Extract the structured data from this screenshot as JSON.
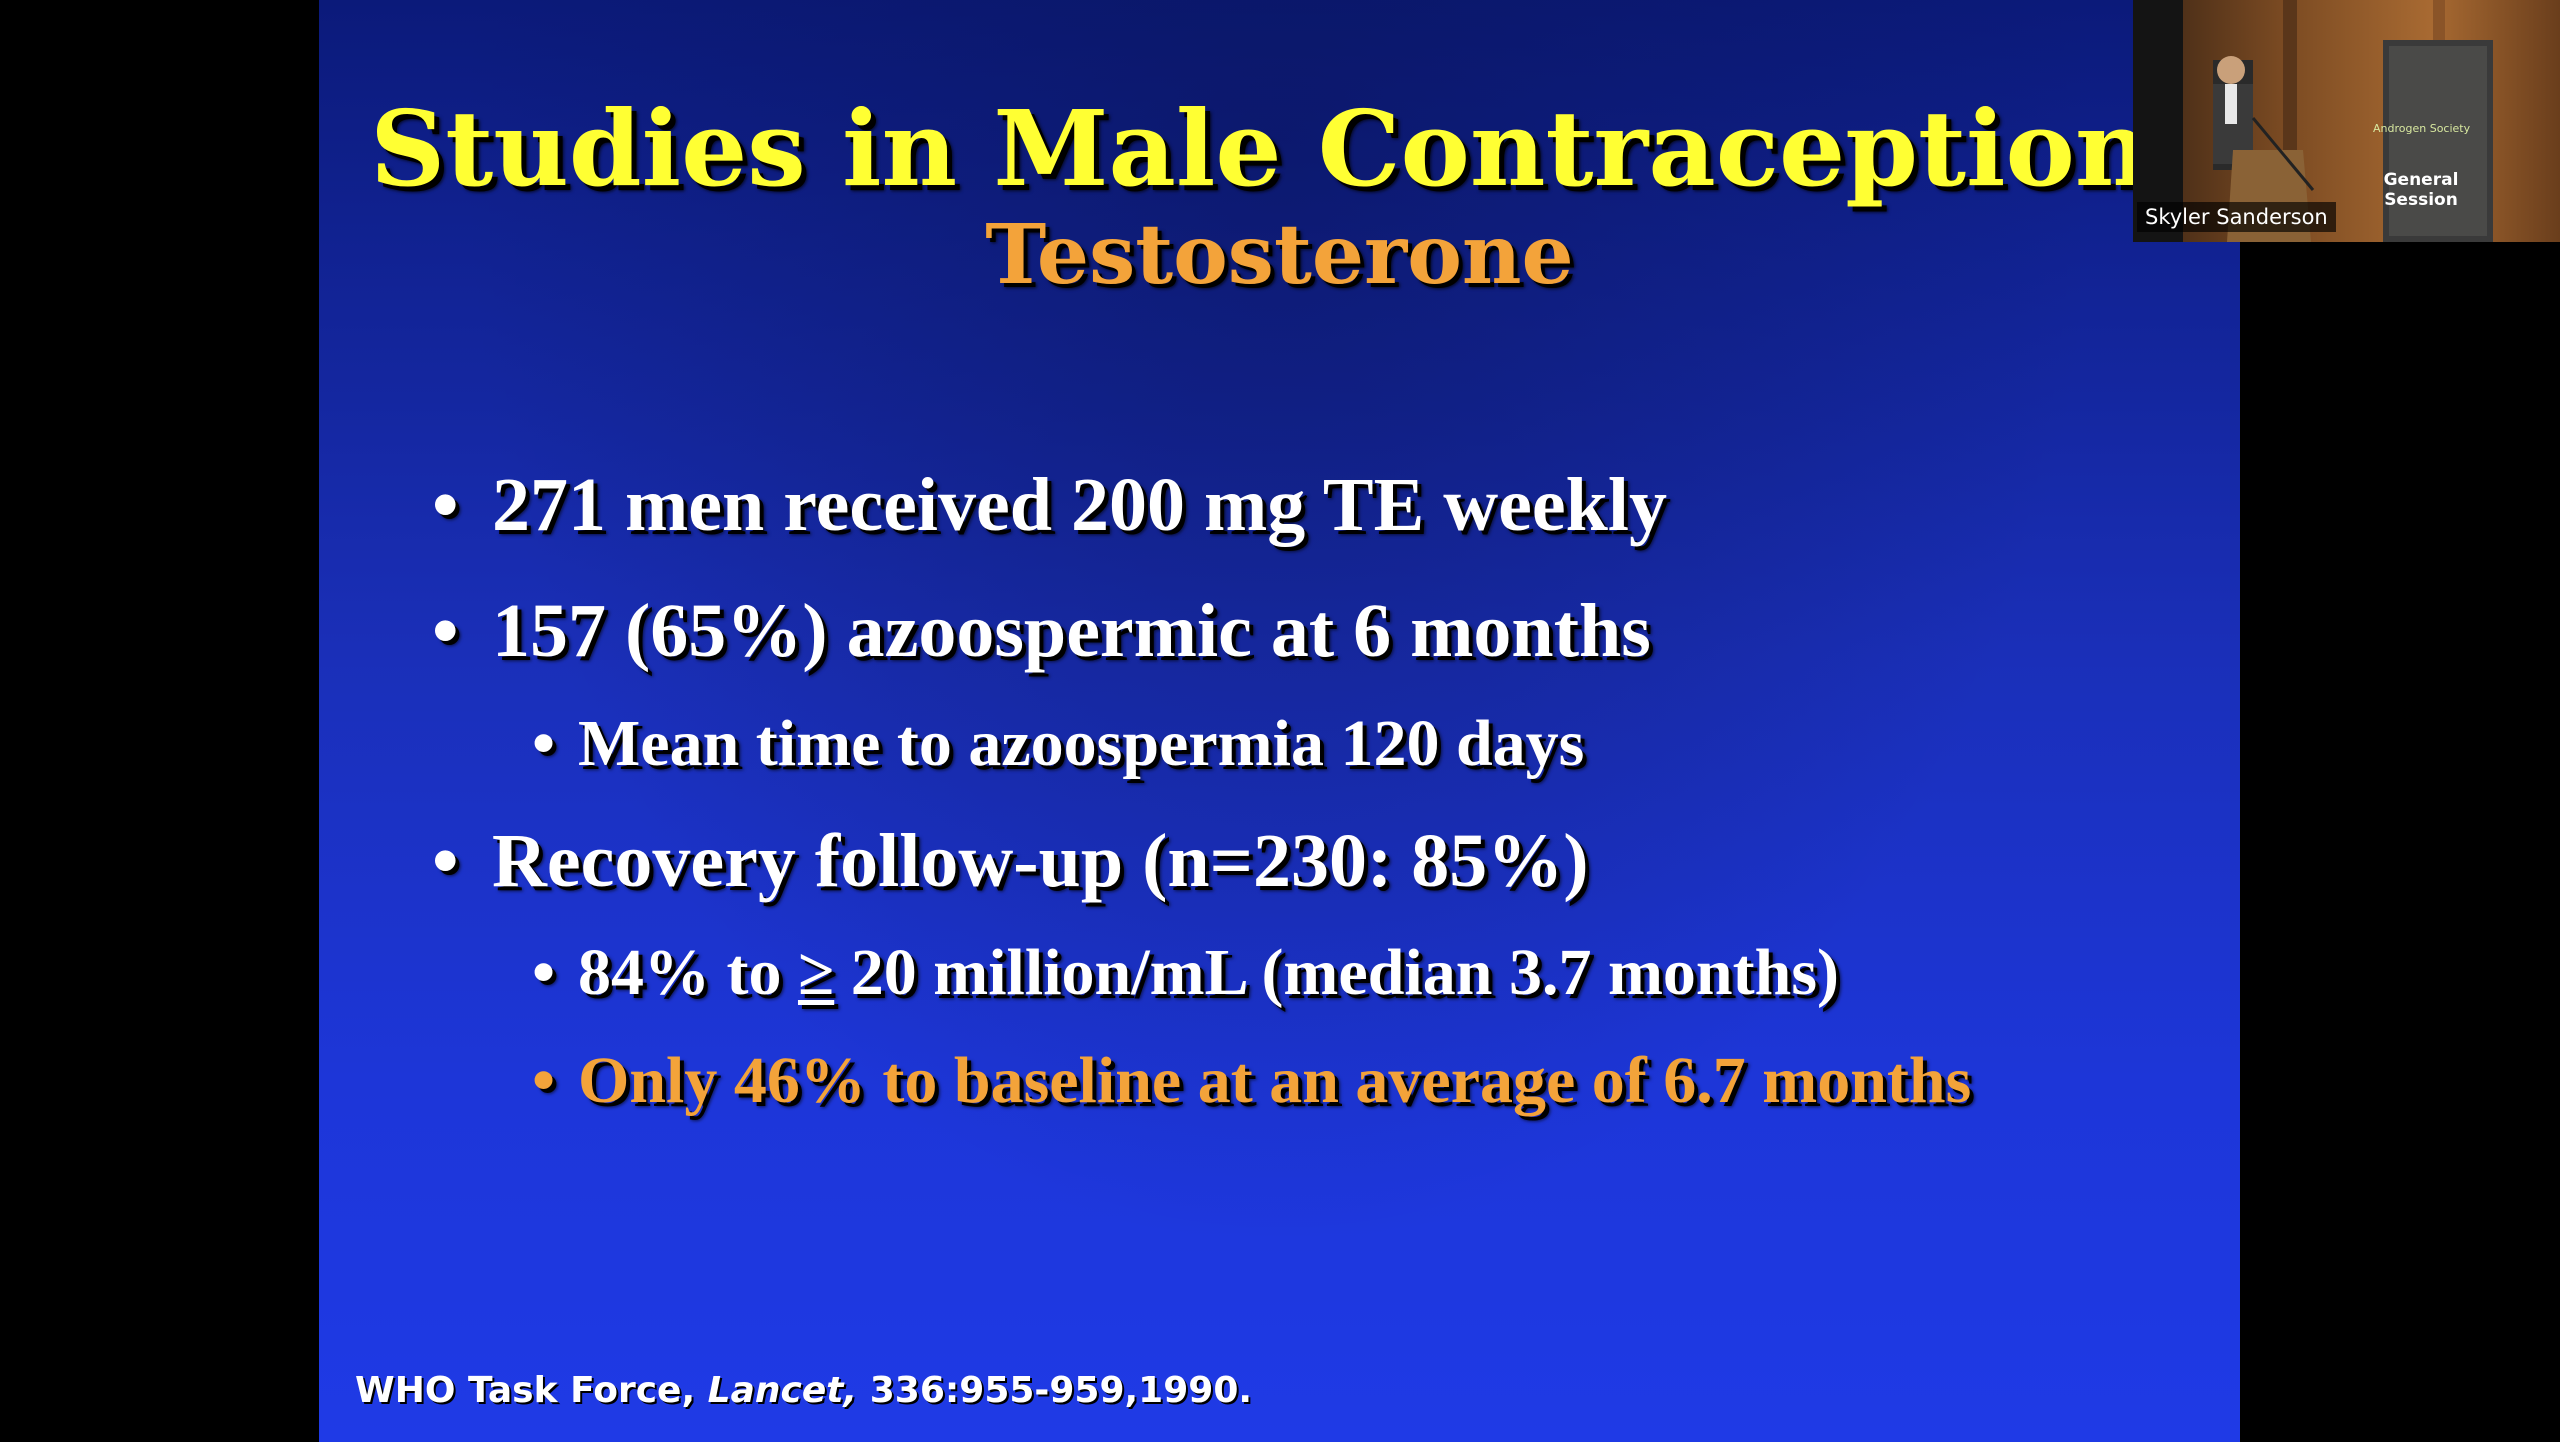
{
  "slide": {
    "title": "Studies in Male Contraception:",
    "subtitle": "Testosterone",
    "bullets": [
      {
        "text": "271 men received 200 mg TE weekly"
      },
      {
        "text": "157 (65%) azoospermic at 6 months"
      },
      {
        "text": "Mean time to azoospermia 120 days"
      },
      {
        "text": "Recovery follow-up (n=230: 85%)"
      },
      {
        "prefix": "84% to ",
        "symbol": "≥",
        "suffix": " 20 million/mL (median 3.7 months)"
      },
      {
        "text": "Only 46% to baseline at an average of 6.7 months"
      }
    ],
    "bullet_glyph": "•",
    "citation": {
      "prefix": "WHO Task Force, ",
      "journal": "Lancet,",
      "suffix": " 336:955-959,1990."
    },
    "colors": {
      "title": "#ffff33",
      "subtitle": "#f3a33a",
      "body": "#ffffff",
      "highlight": "#f3a33a",
      "background": "#1d36d8"
    }
  },
  "video_tile": {
    "participant_name": "Skyler Sanderson",
    "banner_text": "General\nSession",
    "banner_logo_text": "Androgen Society"
  }
}
